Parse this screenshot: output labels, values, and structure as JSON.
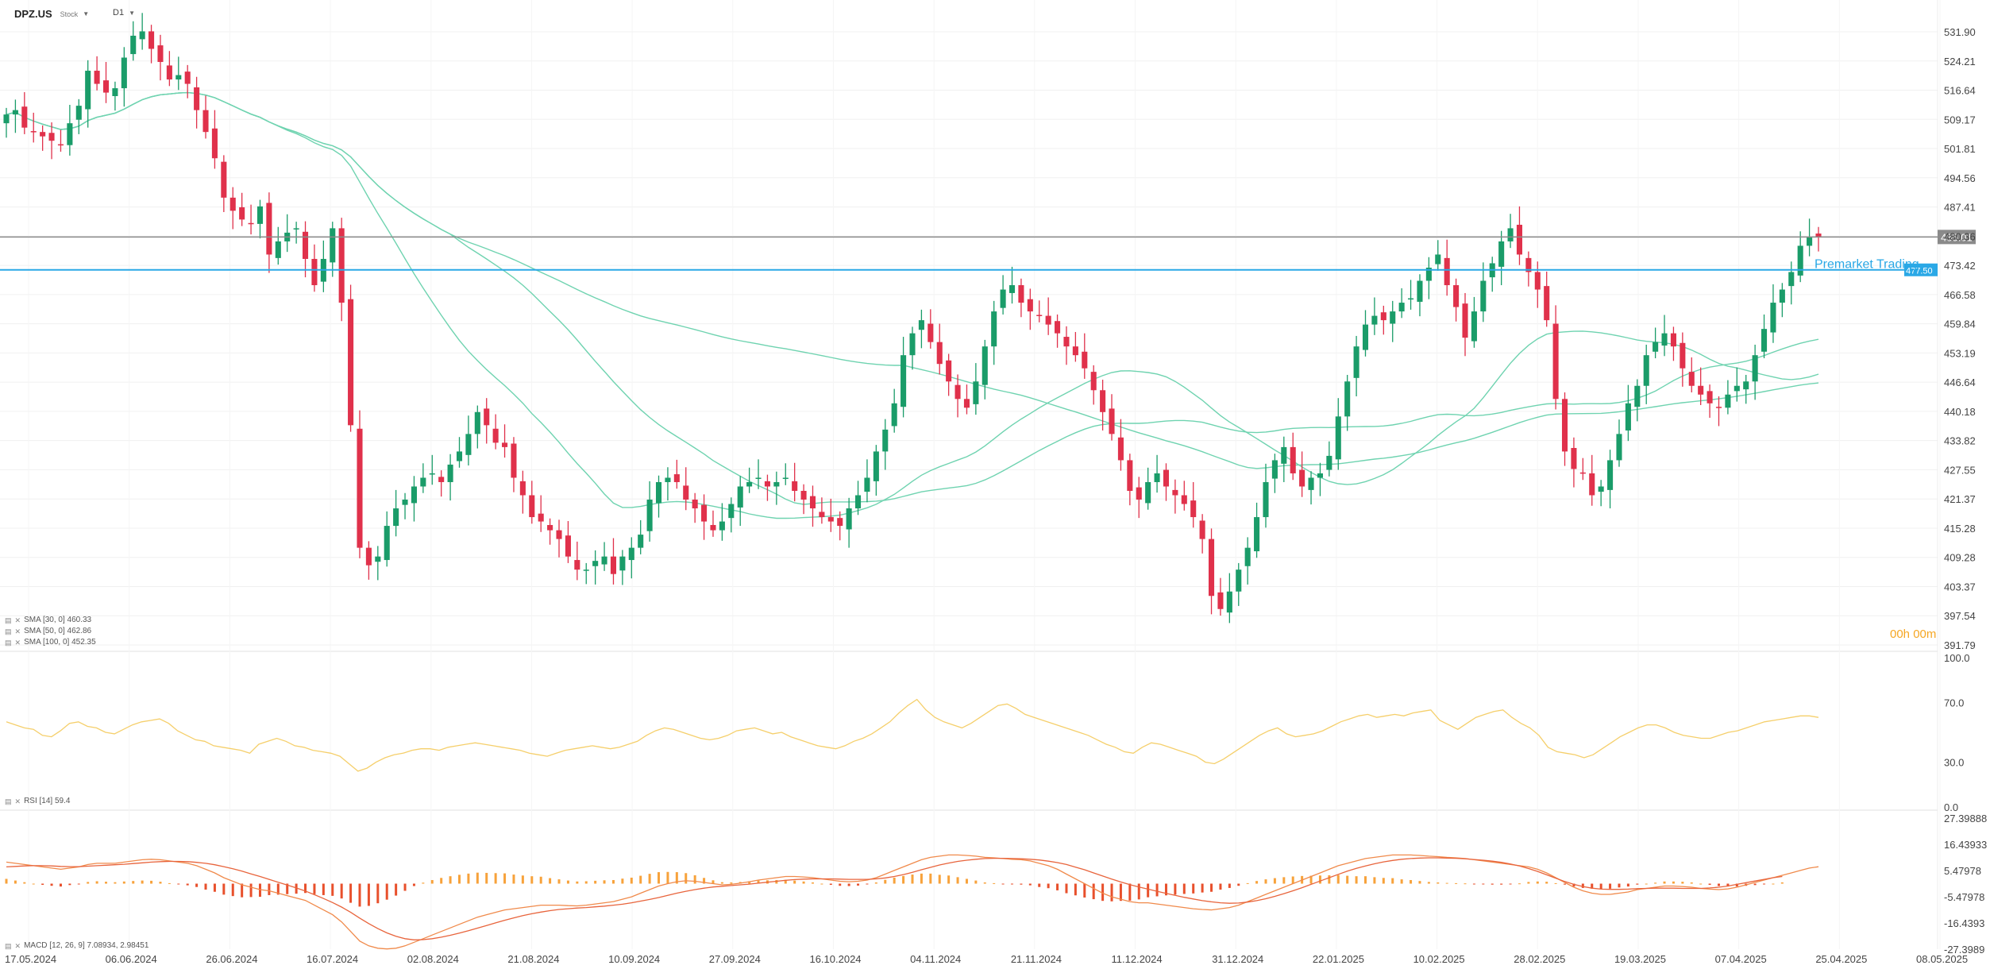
{
  "header": {
    "symbol": "DPZ.US",
    "asset_type": "Stock",
    "timeframe": "D1"
  },
  "indicators": {
    "sma30": "SMA [30, 0] 460.33",
    "sma50": "SMA [50, 0] 462.86",
    "sma100": "SMA [100, 0] 452.35",
    "rsi": "RSI [14] 59.4",
    "macd": "MACD [12, 26, 9] 7.08934, 2.98451"
  },
  "countdown": {
    "hours": "00h",
    "minutes": "00",
    "suffix": "m"
  },
  "colors": {
    "up": "#1a9c69",
    "down": "#e0314b",
    "sma": "#6fd3b0",
    "rsi": "#f5cf6b",
    "macd_line": "#f08a4b",
    "signal_line": "#e8643c",
    "hist_pos": "#f7a23b",
    "hist_neg": "#e8502c",
    "premarket": "#2aa8e6",
    "last_price": "#8a8a8a"
  },
  "chart_data": [
    {
      "type": "candlestick",
      "title": "DPZ.US",
      "y_ticks": [
        "531.90",
        "524.21",
        "516.64",
        "509.17",
        "501.81",
        "494.56",
        "487.41",
        "480.36",
        "473.42",
        "466.58",
        "459.84",
        "453.19",
        "446.64",
        "440.18",
        "433.82",
        "427.55",
        "421.37",
        "415.28",
        "409.28",
        "403.37",
        "397.54",
        "391.79"
      ],
      "x_tick_labels": [
        "17.05.2024",
        "06.06.2024",
        "26.06.2024",
        "16.07.2024",
        "02.08.2024",
        "21.08.2024",
        "10.09.2024",
        "27.09.2024",
        "16.10.2024",
        "04.11.2024",
        "21.11.2024",
        "11.12.2024",
        "31.12.2024",
        "22.01.2025",
        "10.02.2025",
        "28.02.2025",
        "19.03.2025",
        "07.04.2025",
        "25.04.2025",
        "08.05.2025"
      ],
      "last_price_label": "485.01",
      "premarket_label": "Premarket Trading",
      "premarket_price_label": "477.50",
      "ylim": [
        391.79,
        531.9
      ],
      "series": [
        {
          "name": "DPZ.US",
          "close": [
            513,
            514,
            510,
            509,
            508,
            507,
            506,
            511,
            515,
            523,
            520,
            518,
            519,
            526,
            531,
            532,
            528,
            525,
            521,
            522,
            520,
            514,
            509,
            503,
            494,
            491,
            489,
            488,
            492,
            481,
            484,
            486,
            487,
            480,
            474,
            480,
            487,
            470,
            442,
            414,
            410,
            412,
            419,
            423,
            425,
            428,
            430,
            431,
            429,
            433,
            436,
            440,
            445,
            442,
            438,
            437,
            430,
            426,
            421,
            420,
            418,
            416,
            412,
            409,
            409,
            411,
            412,
            408,
            412,
            414,
            417,
            425,
            429,
            430,
            429,
            425,
            423,
            420,
            418,
            420,
            424,
            428,
            429,
            430,
            428,
            429,
            430,
            427,
            425,
            423,
            421,
            420,
            419,
            423,
            426,
            430,
            436,
            441,
            447,
            458,
            463,
            466,
            461,
            456,
            452,
            448,
            446,
            452,
            460,
            468,
            473,
            474,
            470,
            468,
            467,
            465,
            463,
            460,
            458,
            455,
            450,
            445,
            440,
            434,
            427,
            425,
            429,
            431,
            428,
            426,
            424,
            421,
            416,
            403,
            400,
            404,
            409,
            414,
            421,
            429,
            434,
            437,
            431,
            428,
            430,
            431,
            435,
            444,
            452,
            460,
            465,
            467,
            466,
            468,
            470,
            471,
            475,
            478,
            481,
            474,
            469,
            462,
            468,
            475,
            479,
            484,
            487,
            481,
            477,
            473,
            466,
            448,
            436,
            432,
            431,
            426,
            428,
            434,
            440,
            447,
            451,
            458,
            461,
            463,
            460,
            455,
            451,
            449,
            447,
            446,
            449,
            451,
            452,
            458,
            464,
            470,
            473,
            477,
            483,
            485,
            485
          ]
        }
      ]
    },
    {
      "type": "line",
      "title": "RSI [14]",
      "y_ticks": [
        "100.0",
        "70.0",
        "30.0",
        "0.0"
      ],
      "ylim": [
        0,
        100
      ],
      "series": [
        {
          "name": "RSI [14]",
          "values": [
            57,
            55,
            53,
            52,
            48,
            47,
            51,
            56,
            57,
            54,
            53,
            50,
            49,
            52,
            55,
            57,
            58,
            59,
            56,
            51,
            48,
            45,
            44,
            41,
            40,
            39,
            38,
            36,
            42,
            44,
            46,
            44,
            41,
            40,
            38,
            37,
            36,
            34,
            29,
            24,
            26,
            30,
            33,
            35,
            36,
            38,
            39,
            39,
            38,
            40,
            41,
            42,
            43,
            42,
            41,
            40,
            39,
            38,
            36,
            35,
            34,
            36,
            38,
            39,
            40,
            41,
            40,
            39,
            40,
            42,
            44,
            48,
            51,
            53,
            52,
            50,
            48,
            46,
            45,
            46,
            48,
            51,
            52,
            53,
            51,
            49,
            50,
            47,
            45,
            43,
            41,
            40,
            39,
            41,
            44,
            46,
            49,
            53,
            57,
            63,
            68,
            72,
            65,
            60,
            57,
            55,
            53,
            56,
            60,
            64,
            68,
            69,
            66,
            62,
            60,
            58,
            56,
            54,
            52,
            50,
            48,
            45,
            42,
            40,
            37,
            36,
            40,
            43,
            42,
            40,
            38,
            36,
            34,
            30,
            29,
            32,
            36,
            40,
            44,
            48,
            51,
            53,
            49,
            47,
            48,
            49,
            51,
            54,
            57,
            59,
            61,
            62,
            60,
            61,
            62,
            61,
            63,
            64,
            65,
            58,
            55,
            52,
            56,
            60,
            62,
            64,
            65,
            60,
            56,
            53,
            48,
            40,
            37,
            36,
            35,
            33,
            35,
            39,
            43,
            47,
            50,
            53,
            55,
            55,
            53,
            50,
            48,
            47,
            46,
            46,
            48,
            50,
            51,
            53,
            55,
            57,
            58,
            59,
            60,
            61,
            61,
            60
          ]
        }
      ]
    },
    {
      "type": "line",
      "title": "MACD [12, 26, 9]",
      "y_ticks": [
        "27.39888",
        "16.43933",
        "5.47978",
        "-5.47978",
        "-16.4393",
        "-27.3989"
      ],
      "ylim": [
        -27.3989,
        27.39888
      ],
      "series": [
        {
          "name": "MACD",
          "values": [
            9,
            8.5,
            8,
            7.5,
            7,
            6.5,
            6,
            6.5,
            7,
            8,
            8.5,
            8.5,
            8.5,
            9,
            9.5,
            10,
            10.2,
            10,
            9.5,
            9,
            8.5,
            7.5,
            6,
            4.5,
            2.5,
            1,
            -0.5,
            -1.5,
            -2.5,
            -3,
            -4,
            -5,
            -6,
            -7,
            -9,
            -11,
            -13,
            -16,
            -20,
            -24,
            -26,
            -27,
            -27.3,
            -27,
            -26,
            -24.5,
            -23,
            -21.5,
            -20,
            -18.5,
            -17,
            -15.5,
            -14,
            -13,
            -12,
            -11,
            -10.5,
            -10,
            -9.5,
            -9,
            -9,
            -9,
            -9.2,
            -9.3,
            -9,
            -8.5,
            -8,
            -7.5,
            -6.5,
            -5.5,
            -4,
            -2.5,
            -1,
            0,
            0.8,
            1.2,
            1,
            0.5,
            0,
            -0.5,
            -0.3,
            0.2,
            0.8,
            1.5,
            2,
            2.5,
            3,
            3,
            2.8,
            2.5,
            2,
            1.5,
            1,
            0.8,
            1,
            1.5,
            2.5,
            4,
            5.5,
            7,
            8.5,
            10,
            11,
            11.5,
            12,
            12,
            11.8,
            11.5,
            11,
            10.8,
            10.5,
            10.2,
            10,
            9.5,
            8.5,
            7.5,
            6,
            4,
            2,
            0,
            -2,
            -4,
            -5.5,
            -6.5,
            -7.5,
            -8,
            -8,
            -8.5,
            -9,
            -9.5,
            -10,
            -10.5,
            -10.8,
            -11,
            -10.5,
            -10,
            -9,
            -7.5,
            -6,
            -4.5,
            -3,
            -1.5,
            0,
            1.5,
            3,
            4.5,
            6,
            7.5,
            8.5,
            9.5,
            10.5,
            11,
            11.5,
            12,
            12,
            12,
            11.8,
            11.5,
            11.3,
            11,
            10.8,
            10.5,
            10,
            9.5,
            9,
            8.5,
            8,
            7.5,
            7,
            6,
            4.5,
            2.5,
            0.5,
            -1.5,
            -3,
            -4,
            -4.5,
            -4.5,
            -4,
            -3.5,
            -2.5,
            -2,
            -1.5,
            -1,
            -1,
            -1.2,
            -1.5,
            -2,
            -2.3,
            -2.5,
            -2.2,
            -1.5,
            -0.5,
            0.5,
            1.5,
            2.5,
            3.5,
            4.5,
            5.5,
            6.5,
            7.09
          ]
        },
        {
          "name": "Signal",
          "values": [
            7,
            7.2,
            7.4,
            7.5,
            7.5,
            7.4,
            7.2,
            7.1,
            7.1,
            7.3,
            7.5,
            7.7,
            7.9,
            8.1,
            8.4,
            8.7,
            9,
            9.2,
            9.3,
            9.3,
            9.2,
            8.9,
            8.5,
            7.9,
            7.1,
            6.2,
            5.2,
            4.1,
            3,
            1.8,
            0.6,
            -0.6,
            -1.8,
            -3.1,
            -4.6,
            -6.2,
            -7.9,
            -9.8,
            -12,
            -14.4,
            -16.7,
            -18.8,
            -20.6,
            -22,
            -23,
            -23.5,
            -23.4,
            -23,
            -22.4,
            -21.6,
            -20.7,
            -19.7,
            -18.6,
            -17.5,
            -16.4,
            -15.3,
            -14.3,
            -13.4,
            -12.6,
            -11.9,
            -11.3,
            -10.8,
            -10.5,
            -10.2,
            -10,
            -9.7,
            -9.4,
            -9,
            -8.6,
            -8,
            -7.3,
            -6.6,
            -5.8,
            -4.9,
            -4,
            -3.2,
            -2.5,
            -1.9,
            -1.4,
            -1.1,
            -0.8,
            -0.5,
            -0.2,
            0.2,
            0.6,
            1,
            1.4,
            1.7,
            1.9,
            2,
            2,
            2,
            1.9,
            1.8,
            1.8,
            1.8,
            2,
            2.4,
            3,
            3.8,
            4.7,
            5.8,
            6.8,
            7.8,
            8.6,
            9.3,
            9.8,
            10.2,
            10.5,
            10.6,
            10.6,
            10.5,
            10.4,
            10.2,
            9.9,
            9.4,
            8.8,
            8,
            6.9,
            5.8,
            4.5,
            3.2,
            1.9,
            0.7,
            -0.4,
            -1.4,
            -2.3,
            -3.2,
            -4.1,
            -4.9,
            -5.7,
            -6.4,
            -7.1,
            -7.6,
            -8,
            -8.2,
            -8.1,
            -7.7,
            -7.1,
            -6.3,
            -5.3,
            -4.2,
            -3,
            -1.7,
            -0.3,
            1.1,
            2.5,
            3.9,
            5.2,
            6.4,
            7.4,
            8.3,
            9.1,
            9.7,
            10.2,
            10.5,
            10.7,
            10.8,
            10.8,
            10.7,
            10.6,
            10.4,
            10.1,
            9.8,
            9.4,
            8.9,
            8.2,
            7.4,
            6.3,
            5.1,
            3.7,
            2.3,
            0.9,
            -0.3,
            -1.2,
            -1.9,
            -2.3,
            -2.4,
            -2.4,
            -2.3,
            -2.1,
            -2,
            -1.9,
            -1.9,
            -1.9,
            -2,
            -2,
            -2,
            -1.8,
            -1.5,
            -1,
            -0.3,
            0.4,
            1.1,
            1.8,
            2.5,
            2.98
          ]
        }
      ]
    }
  ]
}
